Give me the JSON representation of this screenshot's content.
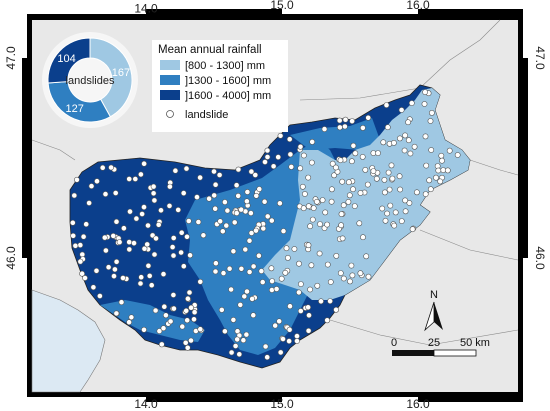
{
  "map": {
    "lon_ticks": [
      "14.0",
      "15.0",
      "16.0"
    ],
    "lat_ticks": [
      "47.0",
      "46.0"
    ],
    "colors": {
      "sea": "#dce9f3",
      "neighbor_land": "#e8e8e8",
      "class_low": "#9fc8e3",
      "class_mid": "#2f7fc1",
      "class_high": "#0b3f8c",
      "landslide_fill": "#ffffff",
      "frame": "#000000"
    }
  },
  "legend": {
    "title": "Mean annual rainfall",
    "items": [
      {
        "label": "[800 - 1300] mm",
        "color": "#9fc8e3"
      },
      {
        "label": "]1300 - 1600] mm",
        "color": "#2f7fc1"
      },
      {
        "label": "]1600 - 4000] mm",
        "color": "#0b3f8c"
      }
    ],
    "point_label": "landslide"
  },
  "donut": {
    "center_label": "landslides",
    "slices": [
      {
        "value": 167,
        "label": "167",
        "color": "#9fc8e3"
      },
      {
        "value": 127,
        "label": "127",
        "color": "#2f7fc1"
      },
      {
        "value": 104,
        "label": "104",
        "color": "#0b3f8c"
      }
    ]
  },
  "north_arrow": {
    "label": "N"
  },
  "scale_bar": {
    "labels": [
      "0",
      "25",
      "50 km"
    ]
  }
}
